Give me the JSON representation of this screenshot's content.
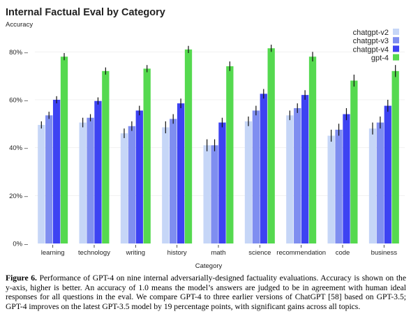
{
  "chart_data": {
    "type": "bar",
    "title": "Internal Factual Eval by Category",
    "ylabel": "Accuracy",
    "xlabel": "Category",
    "ylim": [
      0,
      90
    ],
    "yticks": [
      0,
      20,
      40,
      60,
      80
    ],
    "ytick_labels": [
      "0% –",
      "20% –",
      "40% –",
      "60% –",
      "80% –"
    ],
    "grid": true,
    "legend_position": "top-right",
    "categories": [
      "learning",
      "technology",
      "writing",
      "history",
      "math",
      "science",
      "recommendation",
      "code",
      "business"
    ],
    "series": [
      {
        "name": "chatgpt-v2",
        "color": "#c6d6f7",
        "values": [
          49.5,
          50.5,
          46,
          48.5,
          41,
          51,
          53.5,
          45,
          48
        ],
        "errors": [
          1.5,
          2,
          2,
          2.5,
          2.5,
          2,
          2,
          2.5,
          2.5
        ]
      },
      {
        "name": "chatgpt-v3",
        "color": "#7f8ef0",
        "values": [
          53.5,
          52.5,
          49,
          52,
          41,
          55.5,
          56.5,
          47.5,
          50.5
        ],
        "errors": [
          1.5,
          1.5,
          2,
          2,
          2.5,
          2,
          2,
          2.5,
          2.5
        ]
      },
      {
        "name": "chatgpt-v4",
        "color": "#3d43f2",
        "values": [
          60,
          59.5,
          55.5,
          58.5,
          50.5,
          62.5,
          62,
          54,
          57.5
        ],
        "errors": [
          1.5,
          1.5,
          2,
          2,
          2,
          2,
          2,
          2.5,
          2.5
        ]
      },
      {
        "name": "gpt-4",
        "color": "#55d94f",
        "values": [
          78,
          72,
          73,
          81,
          74,
          81.5,
          78,
          68,
          72
        ],
        "errors": [
          1.5,
          1.5,
          1.5,
          1.5,
          2,
          1.5,
          2,
          2.5,
          2.5
        ]
      }
    ]
  },
  "caption": {
    "label": "Figure 6.",
    "text": "Performance of GPT-4 on nine internal adversarially-designed factuality evaluations. Accuracy is shown on the y-axis, higher is better. An accuracy of 1.0 means the model’s answers are judged to be in agreement with human ideal responses for all questions in the eval. We compare GPT-4 to three earlier versions of ChatGPT [58] based on GPT-3.5; GPT-4 improves on the latest GPT-3.5 model by 19 percentage points, with significant gains across all topics."
  }
}
